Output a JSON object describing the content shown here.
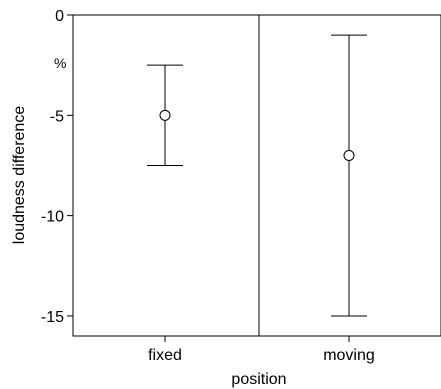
{
  "chart_data": {
    "type": "errorbar",
    "title": "",
    "xlabel": "position",
    "ylabel": "loudness difference",
    "yunit": "%",
    "categories": [
      "fixed",
      "moving"
    ],
    "yticks": [
      0,
      -5,
      -10,
      -15
    ],
    "ylim": [
      -16,
      0
    ],
    "grid": false,
    "points": [
      {
        "category": "fixed",
        "mean": -5.0,
        "upper": -2.5,
        "lower": -7.5
      },
      {
        "category": "moving",
        "mean": -7.0,
        "upper": -1.0,
        "lower": -15.0
      }
    ],
    "colors": {
      "line": "#000000",
      "marker_fill": "#ffffff"
    }
  }
}
